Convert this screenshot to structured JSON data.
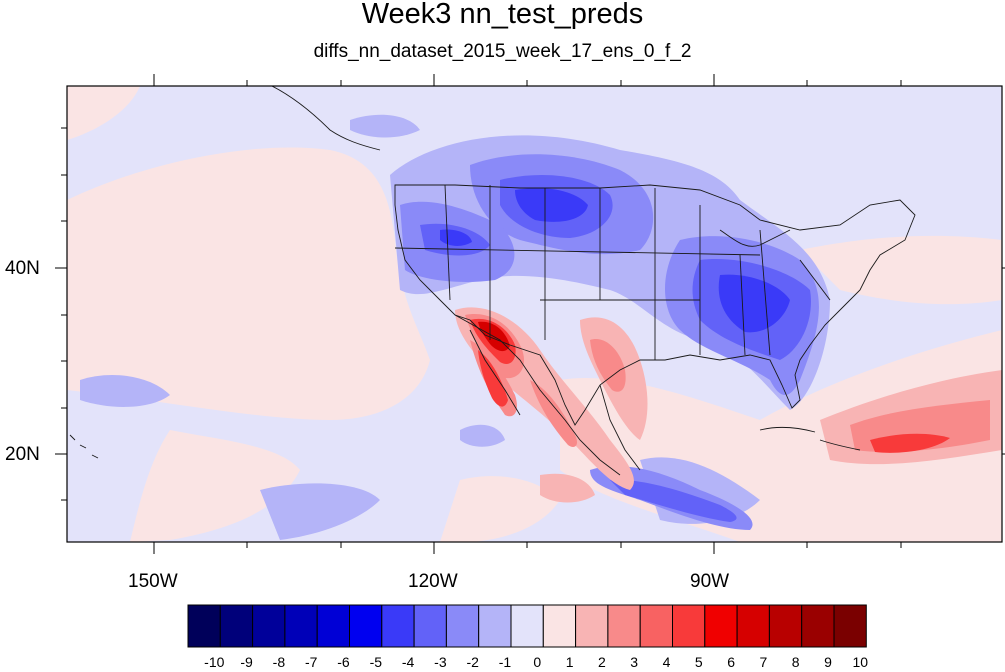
{
  "title": "Week3 nn_test_preds",
  "subtitle": "diffs_nn_dataset_2015_week_17_ens_0_f_2",
  "map": {
    "longitude_labels": [
      "150W",
      "120W",
      "90W"
    ],
    "latitude_labels": [
      "40N",
      "20N"
    ]
  },
  "colorbar": {
    "labels": [
      "-10",
      "-9",
      "-8",
      "-7",
      "-6",
      "-5",
      "-4",
      "-3",
      "-2",
      "-1",
      "0",
      "1",
      "2",
      "3",
      "4",
      "5",
      "6",
      "7",
      "8",
      "9",
      "10"
    ],
    "colors": [
      "#00005a",
      "#00007a",
      "#00009a",
      "#0000b8",
      "#0000d6",
      "#0000f0",
      "#3a3af8",
      "#6262f8",
      "#8a8af8",
      "#b4b4f8",
      "#e3e3fa",
      "#fae4e4",
      "#f8b4b4",
      "#f88a8a",
      "#f86262",
      "#f83a3a",
      "#f00000",
      "#d60000",
      "#b80000",
      "#9a0000",
      "#7a0000"
    ]
  },
  "colors": {
    "background_light_blue": "#e3e3fa",
    "background_light_pink": "#fae4e4"
  }
}
